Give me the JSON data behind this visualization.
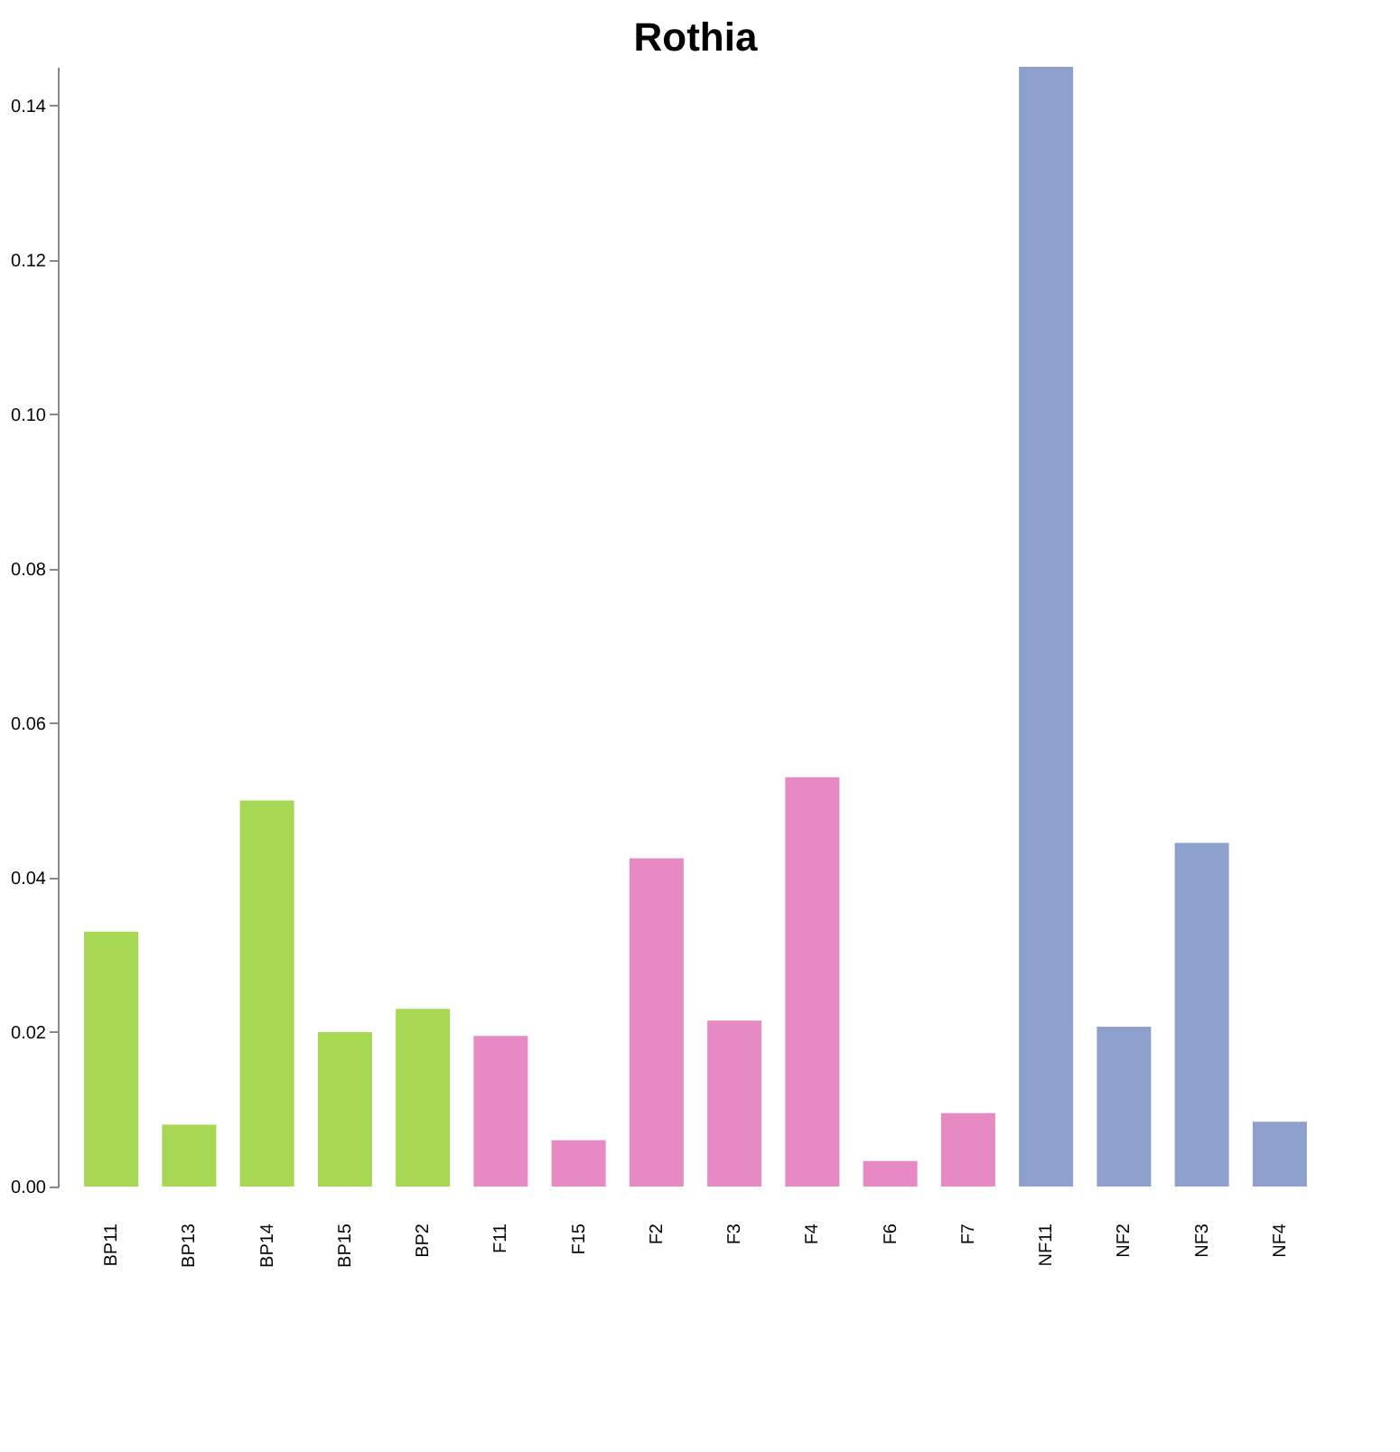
{
  "chart_data": {
    "type": "bar",
    "title": "Rothia",
    "categories": [
      "BP11",
      "BP13",
      "BP14",
      "BP15",
      "BP2",
      "F11",
      "F15",
      "F2",
      "F3",
      "F4",
      "F6",
      "F7",
      "NF11",
      "NF2",
      "NF3",
      "NF4"
    ],
    "values": [
      0.033,
      0.008,
      0.05,
      0.02,
      0.023,
      0.0195,
      0.006,
      0.0425,
      0.0215,
      0.053,
      0.0033,
      0.0095,
      0.145,
      0.0207,
      0.0445,
      0.0084
    ],
    "colors": [
      "#a6d854",
      "#a6d854",
      "#a6d854",
      "#a6d854",
      "#a6d854",
      "#e78ac3",
      "#e78ac3",
      "#e78ac3",
      "#e78ac3",
      "#e78ac3",
      "#e78ac3",
      "#e78ac3",
      "#8da0cb",
      "#8da0cb",
      "#8da0cb",
      "#8da0cb"
    ],
    "ylim": [
      0,
      0.145
    ],
    "yticks": [
      {
        "value": 0,
        "label": "0.00"
      },
      0.02,
      0.04,
      0.06,
      0.08,
      {
        "value": 0.1,
        "label": "0.10"
      },
      0.12,
      0.14
    ],
    "grid": false
  }
}
